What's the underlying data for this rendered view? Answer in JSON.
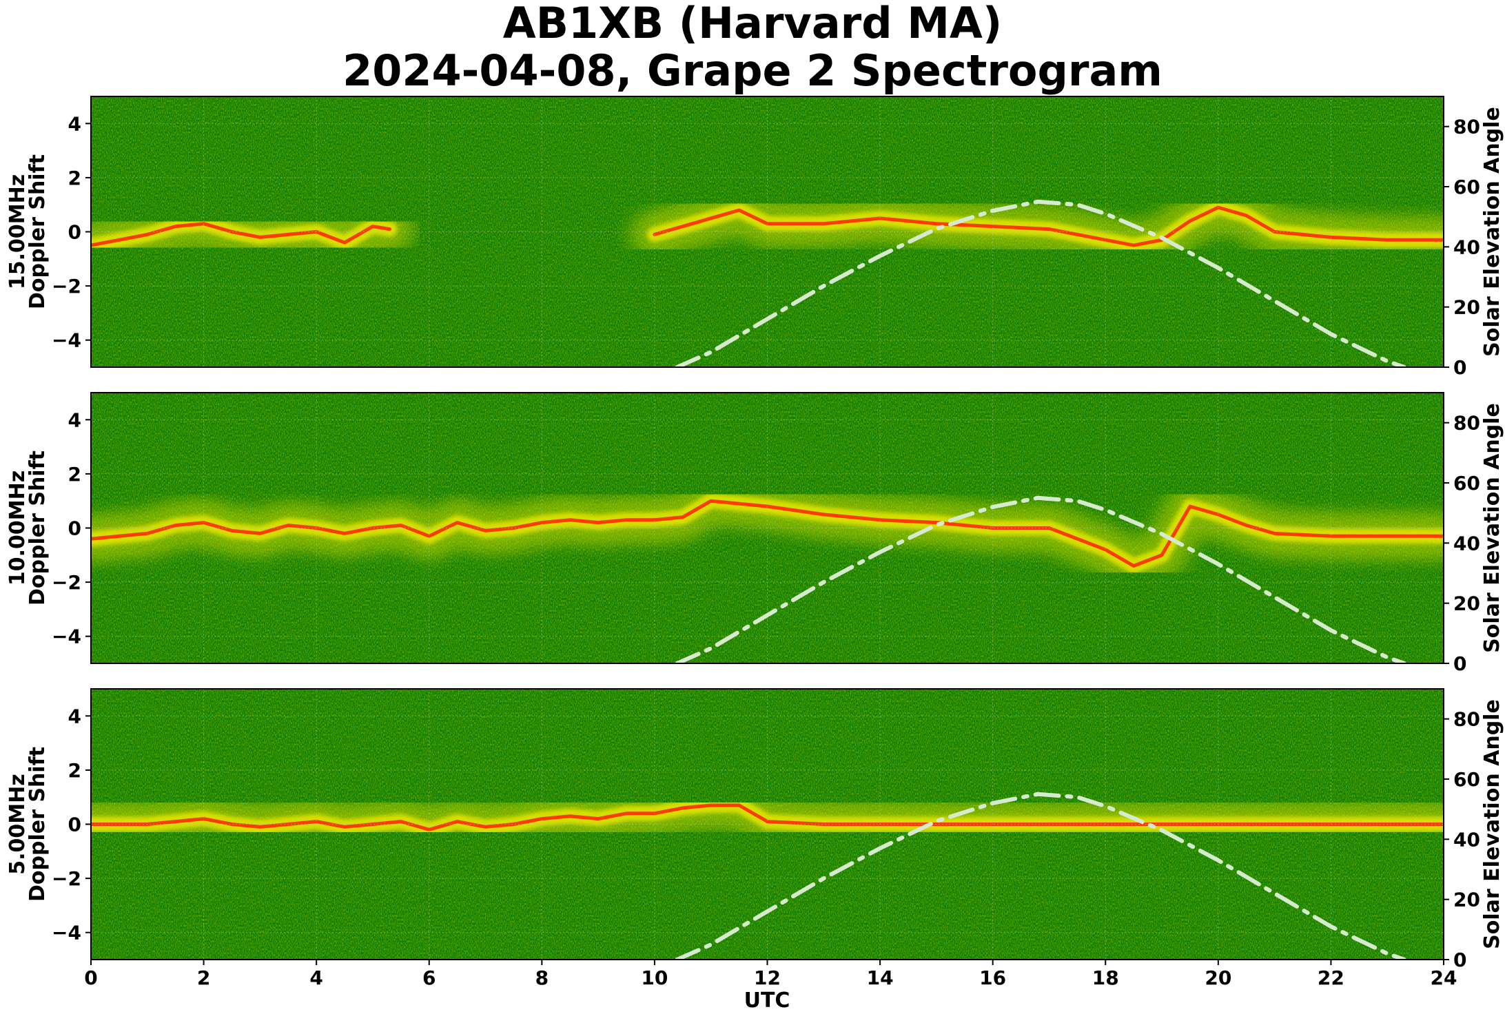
{
  "title_line1": "AB1XB (Harvard MA)",
  "title_line2": "2024-04-08, Grape 2 Spectrogram",
  "xlabel": "UTC",
  "right_axis_label": "Solar Elevation Angle",
  "colors": {
    "background": "#0a7a00",
    "signal_weak": "#e6e600",
    "signal_strong": "#ff2a00",
    "solar_curve": "#d6ead0"
  },
  "chart_data": [
    {
      "type": "heatmap",
      "panel_label": "15.00MHz",
      "ylabel": "Doppler Shift",
      "xlim": [
        0,
        24
      ],
      "ylim": [
        -5,
        5
      ],
      "y2lim": [
        0,
        90
      ],
      "xticks": [
        0,
        2,
        4,
        6,
        8,
        10,
        12,
        14,
        16,
        18,
        20,
        22,
        24
      ],
      "yticks": [
        -4,
        -2,
        0,
        2,
        4
      ],
      "y2ticks": [
        0,
        20,
        40,
        60,
        80
      ],
      "grid": true,
      "doppler_trace": {
        "x": [
          0,
          0.5,
          1,
          1.5,
          2,
          2.5,
          3,
          3.5,
          4,
          4.5,
          5,
          5.3,
          6,
          9,
          10,
          11.5,
          12,
          13,
          14,
          15,
          16,
          17,
          18,
          18.5,
          19,
          19.5,
          20,
          20.5,
          21,
          22,
          23,
          24
        ],
        "y": [
          -0.5,
          -0.3,
          -0.1,
          0.2,
          0.3,
          0.0,
          -0.2,
          -0.1,
          0.0,
          -0.4,
          0.2,
          0.1,
          null,
          null,
          -0.1,
          0.8,
          0.3,
          0.3,
          0.5,
          0.3,
          0.2,
          0.1,
          -0.3,
          -0.5,
          -0.3,
          0.4,
          0.9,
          0.6,
          0.0,
          -0.2,
          -0.3,
          -0.3
        ]
      },
      "solar_elevation": {
        "x": [
          10.4,
          11,
          12,
          13,
          14,
          15,
          16,
          16.8,
          17.5,
          18,
          19,
          20,
          21,
          22,
          23,
          23.3
        ],
        "y": [
          0,
          5,
          16,
          27,
          37,
          46,
          52,
          55,
          54,
          51,
          43,
          33,
          22,
          11,
          2,
          0
        ]
      }
    },
    {
      "type": "heatmap",
      "panel_label": "10.00MHz",
      "ylabel": "Doppler Shift",
      "xlim": [
        0,
        24
      ],
      "ylim": [
        -5,
        5
      ],
      "y2lim": [
        0,
        90
      ],
      "xticks": [
        0,
        2,
        4,
        6,
        8,
        10,
        12,
        14,
        16,
        18,
        20,
        22,
        24
      ],
      "yticks": [
        -4,
        -2,
        0,
        2,
        4
      ],
      "y2ticks": [
        0,
        20,
        40,
        60,
        80
      ],
      "grid": true,
      "doppler_trace": {
        "x": [
          0,
          0.5,
          1,
          1.5,
          2,
          2.5,
          3,
          3.5,
          4,
          4.5,
          5,
          5.5,
          6,
          6.5,
          7,
          7.5,
          8,
          8.5,
          9,
          9.5,
          10,
          10.5,
          11,
          12,
          13,
          14,
          15,
          16,
          17,
          18,
          18.5,
          19,
          19.5,
          20,
          20.5,
          21,
          22,
          23,
          24
        ],
        "y": [
          -0.4,
          -0.3,
          -0.2,
          0.1,
          0.2,
          -0.1,
          -0.2,
          0.1,
          0.0,
          -0.2,
          0.0,
          0.1,
          -0.3,
          0.2,
          -0.1,
          0.0,
          0.2,
          0.3,
          0.2,
          0.3,
          0.3,
          0.4,
          1.0,
          0.8,
          0.5,
          0.3,
          0.2,
          0.0,
          0.0,
          -0.8,
          -1.4,
          -1.0,
          0.8,
          0.5,
          0.1,
          -0.2,
          -0.3,
          -0.3,
          -0.3
        ]
      },
      "solar_elevation": {
        "x": [
          10.4,
          11,
          12,
          13,
          14,
          15,
          16,
          16.8,
          17.5,
          18,
          19,
          20,
          21,
          22,
          23,
          23.3
        ],
        "y": [
          0,
          5,
          16,
          27,
          37,
          46,
          52,
          55,
          54,
          51,
          43,
          33,
          22,
          11,
          2,
          0
        ]
      }
    },
    {
      "type": "heatmap",
      "panel_label": "5.00MHz",
      "ylabel": "Doppler Shift",
      "xlim": [
        0,
        24
      ],
      "ylim": [
        -5,
        5
      ],
      "y2lim": [
        0,
        90
      ],
      "xticks": [
        0,
        2,
        4,
        6,
        8,
        10,
        12,
        14,
        16,
        18,
        20,
        22,
        24
      ],
      "yticks": [
        -4,
        -2,
        0,
        2,
        4
      ],
      "y2ticks": [
        0,
        20,
        40,
        60,
        80
      ],
      "grid": true,
      "doppler_trace": {
        "x": [
          0,
          1,
          1.5,
          2,
          2.5,
          3,
          3.5,
          4,
          4.5,
          5,
          5.5,
          6,
          6.5,
          7,
          7.5,
          8,
          8.5,
          9,
          9.5,
          10,
          10.5,
          11,
          11.5,
          12,
          13,
          14,
          16,
          18,
          20,
          22,
          24
        ],
        "y": [
          0.0,
          0.0,
          0.1,
          0.2,
          0.0,
          -0.1,
          0.0,
          0.1,
          -0.1,
          0.0,
          0.1,
          -0.2,
          0.1,
          -0.1,
          0.0,
          0.2,
          0.3,
          0.2,
          0.4,
          0.4,
          0.6,
          0.7,
          0.7,
          0.1,
          0.0,
          0.0,
          0.0,
          0.0,
          0.0,
          0.0,
          0.0
        ]
      },
      "solar_elevation": {
        "x": [
          10.4,
          11,
          12,
          13,
          14,
          15,
          16,
          16.8,
          17.5,
          18,
          19,
          20,
          21,
          22,
          23,
          23.3
        ],
        "y": [
          0,
          5,
          16,
          27,
          37,
          46,
          52,
          55,
          54,
          51,
          43,
          33,
          22,
          11,
          2,
          0
        ]
      }
    }
  ]
}
